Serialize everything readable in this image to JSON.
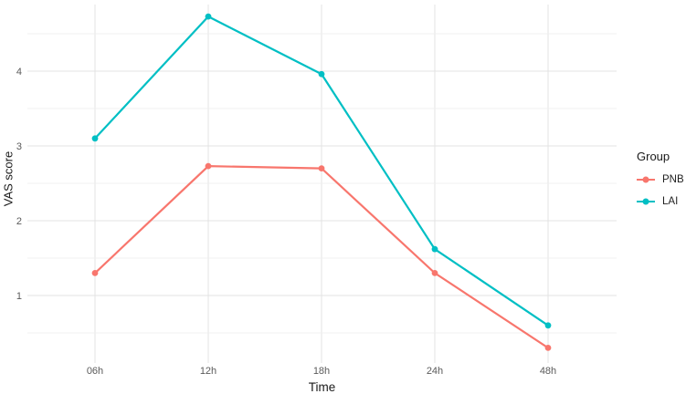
{
  "chart_data": {
    "type": "line",
    "title": "",
    "xlabel": "Time",
    "ylabel": "VAS score",
    "categories": [
      "06h",
      "12h",
      "18h",
      "24h",
      "48h"
    ],
    "series": [
      {
        "name": "PNB",
        "color": "#F8766D",
        "values": [
          1.3,
          2.73,
          2.7,
          1.3,
          0.3
        ]
      },
      {
        "name": "LAI",
        "color": "#00BFC4",
        "values": [
          3.1,
          4.73,
          3.96,
          1.62,
          0.6
        ]
      }
    ],
    "y_major_ticks": [
      1,
      2,
      3,
      4
    ],
    "y_minor_ticks": [
      0.5,
      1.5,
      2.5,
      3.5,
      4.5
    ],
    "ylim": [
      0.1,
      4.9
    ],
    "grid": true,
    "legend": {
      "title": "Group",
      "position": "right"
    }
  },
  "colors": {
    "background": "#FFFFFF",
    "grid_major": "#E3E3E3",
    "grid_minor": "#F0F0F0",
    "tick_label": "#5A5A5A",
    "axis_title": "#1A1A1A"
  }
}
